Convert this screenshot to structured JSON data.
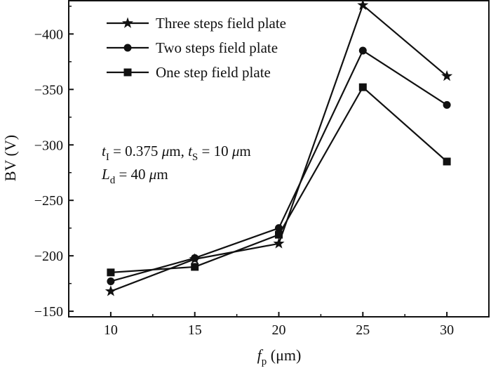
{
  "chart_data": {
    "type": "line",
    "x": [
      10,
      15,
      20,
      25,
      30
    ],
    "xlim": [
      7.5,
      32.5
    ],
    "ylim": [
      -145,
      -430
    ],
    "x_ticks": [
      "10",
      "15",
      "20",
      "25",
      "30"
    ],
    "y_ticks": [
      "−150",
      "−200",
      "−250",
      "−300",
      "−350",
      "−400"
    ],
    "y_tick_values": [
      -150,
      -200,
      -250,
      -300,
      -350,
      -400
    ],
    "x_tick_values": [
      10,
      15,
      20,
      25,
      30
    ],
    "ylabel": "BV (V)",
    "xlabel": {
      "main": "f",
      "sub": "p",
      "unit": " (μm)"
    },
    "grid": false,
    "legend_position": "top-left",
    "series": [
      {
        "name": "Three steps field plate",
        "marker": "star",
        "values": [
          -168,
          -197,
          -211,
          -426,
          -362
        ]
      },
      {
        "name": "Two steps field plate",
        "marker": "circle",
        "values": [
          -177,
          -198,
          -225,
          -385,
          -336
        ]
      },
      {
        "name": "One step field plate",
        "marker": "square",
        "values": [
          -185,
          -190,
          -219,
          -352,
          -285
        ]
      }
    ],
    "annotation": {
      "line1": [
        {
          "text": "t",
          "italic": true
        },
        {
          "text": "I",
          "sub": true
        },
        {
          "text": " = 0.375 "
        },
        {
          "text": "μ",
          "italic": true
        },
        {
          "text": "m, "
        },
        {
          "text": "t",
          "italic": true
        },
        {
          "text": "S",
          "sub": true
        },
        {
          "text": " = 10 "
        },
        {
          "text": "μ",
          "italic": true
        },
        {
          "text": "m"
        }
      ],
      "line2": [
        {
          "text": "L",
          "italic": true
        },
        {
          "text": "d",
          "sub": true
        },
        {
          "text": " = 40 "
        },
        {
          "text": "μ",
          "italic": true
        },
        {
          "text": "m"
        }
      ]
    }
  }
}
